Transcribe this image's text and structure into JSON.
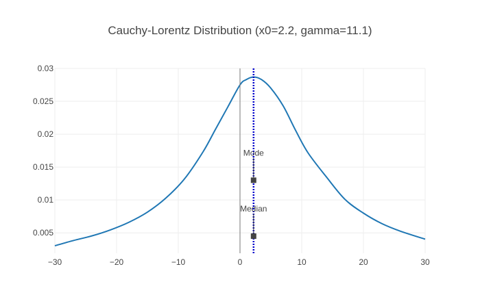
{
  "chart_data": {
    "type": "line",
    "title": "Cauchy-Lorentz Distribution (x0=2.2, gamma=11.1)",
    "xlabel": "",
    "ylabel": "",
    "xlim": [
      -30,
      30
    ],
    "ylim": [
      0.0019,
      0.03
    ],
    "x_ticks": [
      -30,
      -20,
      -10,
      0,
      10,
      20,
      30
    ],
    "x_tick_labels": [
      "−30",
      "−20",
      "−10",
      "0",
      "10",
      "20",
      "30"
    ],
    "y_ticks": [
      0.005,
      0.01,
      0.015,
      0.02,
      0.025,
      0.03
    ],
    "y_tick_labels": [
      "0.005",
      "0.01",
      "0.015",
      "0.02",
      "0.025",
      "0.03"
    ],
    "grid": true,
    "series": [
      {
        "color": "#1f77b4",
        "x": [
          -30,
          -27,
          -24,
          -21,
          -18,
          -15,
          -12,
          -9,
          -6,
          -4,
          -2,
          0,
          1,
          2.2,
          3.5,
          5,
          7,
          9,
          11,
          14,
          17,
          20,
          23,
          26,
          30
        ],
        "y": [
          0.00304,
          0.00383,
          0.00454,
          0.00545,
          0.00661,
          0.00815,
          0.0103,
          0.0132,
          0.0173,
          0.0207,
          0.0241,
          0.0275,
          0.0283,
          0.0287,
          0.0283,
          0.027,
          0.0243,
          0.0206,
          0.0172,
          0.0135,
          0.0101,
          0.008,
          0.0064,
          0.00525,
          0.00404
        ]
      }
    ],
    "vertical_lines": [
      {
        "x": 0,
        "color": "#777777",
        "style": "solid"
      },
      {
        "x": 2.2,
        "color": "#0000cc",
        "style": "dotted"
      }
    ],
    "markers": [
      {
        "label": "Mode",
        "x": 2.2,
        "y": 0.013,
        "color": "#444444"
      },
      {
        "label": "Median",
        "x": 2.2,
        "y": 0.0045,
        "color": "#444444"
      }
    ]
  }
}
